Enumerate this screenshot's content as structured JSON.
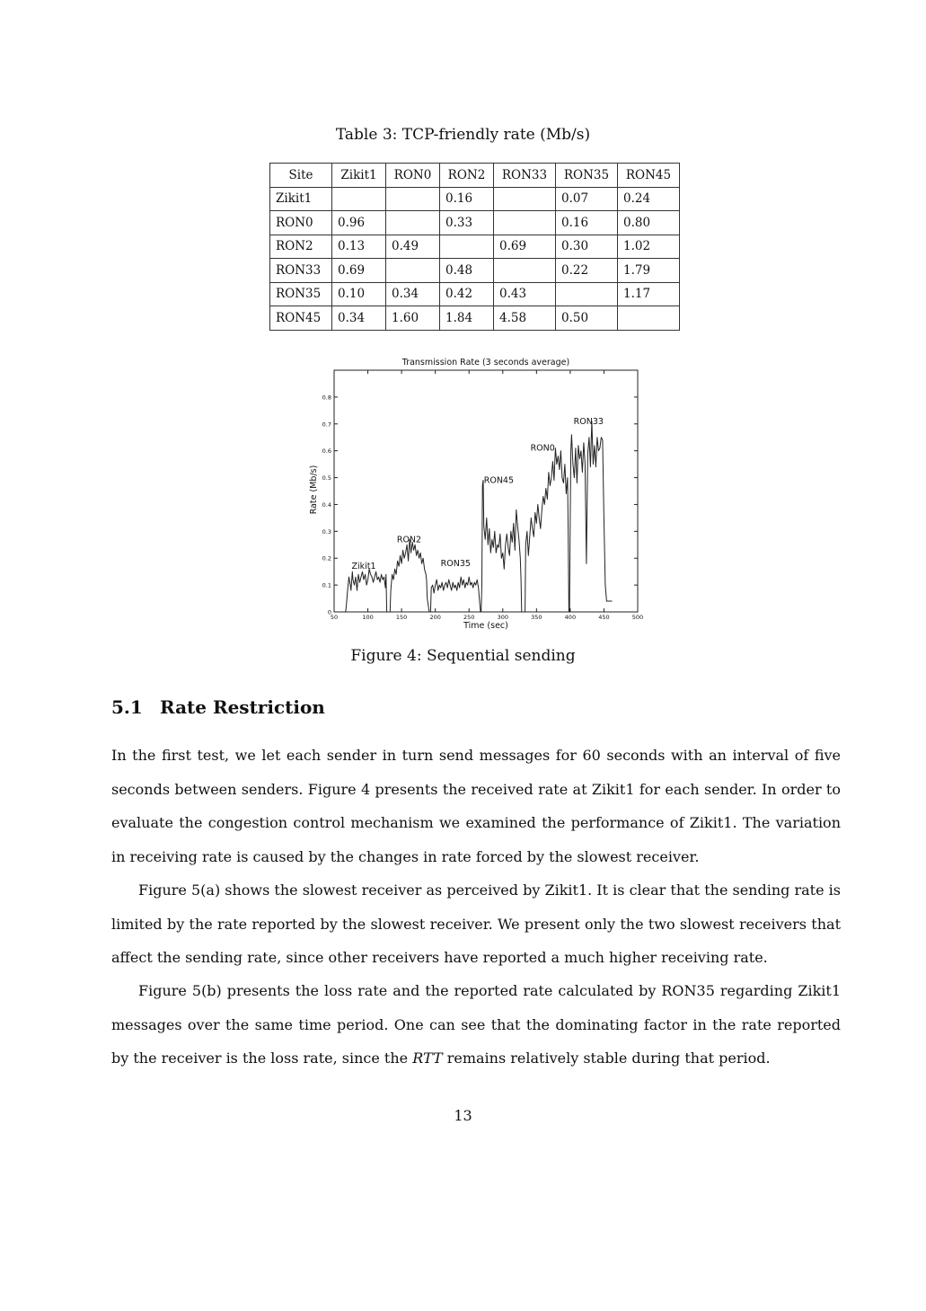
{
  "table": {
    "caption": "Table 3: TCP-friendly rate (Mb/s)",
    "headers": [
      "Site",
      "Zikit1",
      "RON0",
      "RON2",
      "RON33",
      "RON35",
      "RON45"
    ],
    "rows": [
      [
        "Zikit1",
        "",
        "",
        "0.16",
        "",
        "0.07",
        "0.24"
      ],
      [
        "RON0",
        "0.96",
        "",
        "0.33",
        "",
        "0.16",
        "0.80"
      ],
      [
        "RON2",
        "0.13",
        "0.49",
        "",
        "0.69",
        "0.30",
        "1.02"
      ],
      [
        "RON33",
        "0.69",
        "",
        "0.48",
        "",
        "0.22",
        "1.79"
      ],
      [
        "RON35",
        "0.10",
        "0.34",
        "0.42",
        "0.43",
        "",
        "1.17"
      ],
      [
        "RON45",
        "0.34",
        "1.60",
        "1.84",
        "4.58",
        "0.50",
        ""
      ]
    ]
  },
  "chart_data": {
    "type": "line",
    "title": "Transmission Rate (3 seconds average)",
    "xlabel": "Time (sec)",
    "ylabel": "Rate (Mb/s)",
    "xlim": [
      50,
      500
    ],
    "ylim": [
      0,
      0.9
    ],
    "xticks": [
      "50",
      "100",
      "150",
      "200",
      "250",
      "300",
      "350",
      "400",
      "450",
      "500"
    ],
    "yticks": [
      "0",
      "0.1",
      "0.2",
      "0.3",
      "0.4",
      "0.5",
      "0.6",
      "0.7",
      "0.8"
    ],
    "annotations": [
      {
        "text": "Zikit1",
        "x": 76,
        "y": 0.16
      },
      {
        "text": "RON2",
        "x": 143,
        "y": 0.26
      },
      {
        "text": "RON35",
        "x": 208,
        "y": 0.17
      },
      {
        "text": "RON45",
        "x": 272,
        "y": 0.48
      },
      {
        "text": "RON0",
        "x": 341,
        "y": 0.6
      },
      {
        "text": "RON33",
        "x": 405,
        "y": 0.7
      }
    ],
    "series": [
      {
        "x": [
          67,
          68,
          70,
          72,
          74,
          75,
          77,
          78,
          80,
          82,
          84,
          86,
          88,
          90,
          92,
          94,
          96,
          98,
          100,
          102,
          104,
          106,
          108,
          110,
          112,
          114,
          116,
          118,
          120,
          122,
          124,
          126,
          127,
          128,
          133,
          134,
          136,
          138,
          140,
          142,
          144,
          146,
          148,
          150,
          152,
          154,
          156,
          158,
          160,
          162,
          164,
          166,
          168,
          170,
          172,
          174,
          176,
          178,
          180,
          182,
          184,
          186,
          187,
          188,
          191,
          193,
          194,
          196,
          198,
          200,
          202,
          204,
          206,
          208,
          210,
          212,
          214,
          216,
          218,
          220,
          222,
          224,
          226,
          228,
          230,
          232,
          234,
          236,
          238,
          240,
          242,
          244,
          246,
          248,
          250,
          252,
          254,
          256,
          258,
          260,
          262,
          264,
          266,
          267,
          268,
          269,
          270,
          271,
          272,
          274,
          276,
          278,
          280,
          282,
          284,
          286,
          288,
          290,
          292,
          294,
          296,
          298,
          300,
          302,
          304,
          306,
          308,
          310,
          312,
          314,
          316,
          318,
          320,
          322,
          324,
          326,
          327,
          328,
          333,
          334,
          336,
          338,
          340,
          342,
          344,
          346,
          348,
          350,
          352,
          354,
          356,
          358,
          360,
          362,
          364,
          366,
          368,
          370,
          372,
          374,
          376,
          378,
          380,
          382,
          384,
          386,
          388,
          390,
          392,
          394,
          396,
          397,
          398,
          399,
          400,
          401,
          402,
          404,
          406,
          408,
          410,
          412,
          414,
          416,
          418,
          420,
          422,
          424,
          426,
          428,
          430,
          432,
          434,
          436,
          438,
          440,
          442,
          444,
          446,
          448,
          450,
          452,
          454,
          456,
          457,
          458,
          459,
          460,
          462
        ],
        "y": [
          0,
          0.02,
          0.08,
          0.13,
          0.1,
          0.08,
          0.15,
          0.12,
          0.1,
          0.13,
          0.08,
          0.14,
          0.11,
          0.13,
          0.15,
          0.12,
          0.14,
          0.1,
          0.12,
          0.16,
          0.14,
          0.13,
          0.11,
          0.13,
          0.15,
          0.12,
          0.13,
          0.11,
          0.14,
          0.12,
          0.13,
          0.09,
          0.14,
          0,
          0,
          0.08,
          0.14,
          0.12,
          0.16,
          0.14,
          0.19,
          0.17,
          0.21,
          0.18,
          0.23,
          0.2,
          0.22,
          0.25,
          0.19,
          0.27,
          0.22,
          0.26,
          0.23,
          0.25,
          0.21,
          0.23,
          0.2,
          0.22,
          0.18,
          0.2,
          0.16,
          0.14,
          0.12,
          0.05,
          0,
          0,
          0.09,
          0.1,
          0.07,
          0.1,
          0.12,
          0.08,
          0.1,
          0.09,
          0.11,
          0.08,
          0.1,
          0.11,
          0.09,
          0.12,
          0.1,
          0.08,
          0.11,
          0.09,
          0.1,
          0.08,
          0.11,
          0.09,
          0.13,
          0.1,
          0.12,
          0.09,
          0.11,
          0.1,
          0.13,
          0.1,
          0.11,
          0.09,
          0.11,
          0.1,
          0.12,
          0.09,
          0.03,
          0,
          0,
          0.1,
          0.47,
          0.49,
          0.32,
          0.27,
          0.35,
          0.25,
          0.31,
          0.22,
          0.27,
          0.24,
          0.3,
          0.22,
          0.25,
          0.24,
          0.29,
          0.2,
          0.22,
          0.16,
          0.25,
          0.29,
          0.24,
          0.21,
          0.3,
          0.26,
          0.33,
          0.23,
          0.38,
          0.32,
          0.27,
          0.2,
          0.12,
          0,
          0,
          0.25,
          0.3,
          0.21,
          0.28,
          0.35,
          0.31,
          0.28,
          0.37,
          0.33,
          0.4,
          0.35,
          0.31,
          0.38,
          0.43,
          0.4,
          0.46,
          0.42,
          0.52,
          0.47,
          0.5,
          0.56,
          0.49,
          0.61,
          0.55,
          0.58,
          0.53,
          0.6,
          0.5,
          0.48,
          0.55,
          0.44,
          0.5,
          0.3,
          0,
          0,
          0.35,
          0.6,
          0.66,
          0.55,
          0.5,
          0.61,
          0.48,
          0.62,
          0.57,
          0.6,
          0.52,
          0.63,
          0.55,
          0.18,
          0.59,
          0.65,
          0.54,
          0.71,
          0.55,
          0.62,
          0.54,
          0.65,
          0.6,
          0.61,
          0.65,
          0.64,
          0.35,
          0.1,
          0.04,
          0.04,
          0.04,
          0.04,
          0.04,
          0.04,
          0.04
        ]
      }
    ]
  },
  "figure": {
    "caption": "Figure 4: Sequential sending"
  },
  "section": {
    "number": "5.1",
    "title": "Rate Restriction"
  },
  "paragraphs": [
    "In the first test, we let each sender in turn send messages for 60 seconds with an interval of five seconds between senders. Figure 4 presents the received rate at Zikit1 for each sender. In order to evaluate the congestion control mechanism we examined the performance of Zikit1. The variation in receiving rate is caused by the changes in rate forced by the slowest receiver.",
    "Figure 5(a) shows the slowest receiver as perceived by Zikit1. It is clear that the sending rate is limited by the rate reported by the slowest receiver. We present only the two slowest receivers that affect the sending rate, since other receivers have reported a much higher receiving rate."
  ],
  "paragraph3": {
    "before": "Figure 5(b) presents the loss rate and the reported rate calculated by RON35 regarding Zikit1 messages over the same time period. One can see that the dominating factor in the rate reported by the receiver is the loss rate, since the ",
    "emph": "RTT",
    "after": " remains relatively stable during that period."
  },
  "page_number": "13"
}
